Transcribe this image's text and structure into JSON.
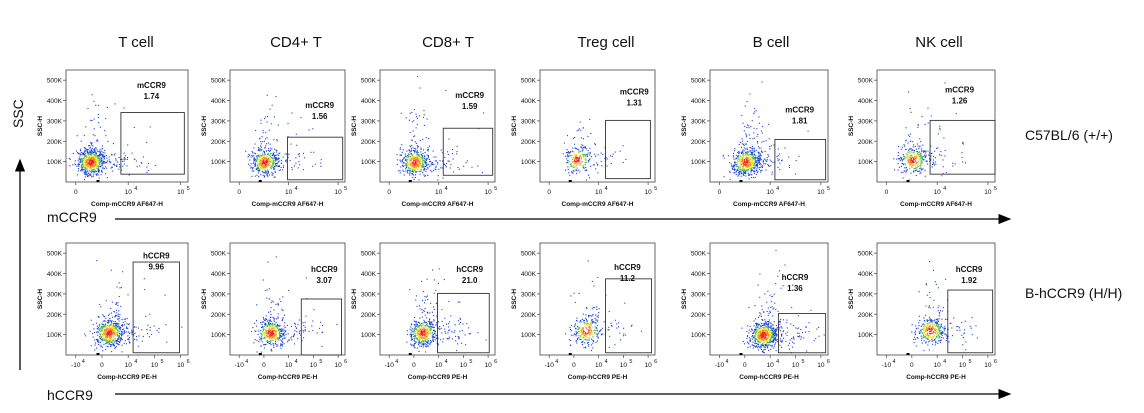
{
  "columns": [
    "T cell",
    "CD4+ T",
    "CD8+ T",
    "Treg cell",
    "B cell",
    "NK cell"
  ],
  "row_labels": [
    "C57BL/6 (+/+)",
    "B-hCCR9 (H/H)"
  ],
  "y_axis_name": "SSC",
  "row_axis_names": [
    "mCCR9",
    "hCCR9"
  ],
  "colors": {
    "high": "#e8231a",
    "mid": "#f4e21b",
    "low": "#1c3fd6",
    "gate": "#333333"
  },
  "chart_data": [
    {
      "type": "scatter",
      "row": "C57BL/6 (+/+)",
      "xlabel": "Comp-mCCR9 AF647-H",
      "ylabel": "SSC-H",
      "y_ticks": [
        "100K",
        "200K",
        "300K",
        "400K",
        "500K"
      ],
      "x_ticks": [
        "0",
        "10^4",
        "10^5"
      ],
      "gate_name": "mCCR9",
      "panels": [
        {
          "cell": "T cell",
          "gate_percent": "1.74"
        },
        {
          "cell": "CD4+ T",
          "gate_percent": "1.56"
        },
        {
          "cell": "CD8+ T",
          "gate_percent": "1.59"
        },
        {
          "cell": "Treg cell",
          "gate_percent": "1.31"
        },
        {
          "cell": "B cell",
          "gate_percent": "1.81"
        },
        {
          "cell": "NK cell",
          "gate_percent": "1.26"
        }
      ]
    },
    {
      "type": "scatter",
      "row": "B-hCCR9 (H/H)",
      "xlabel": "Comp-hCCR9 PE-H",
      "ylabel": "SSC-H",
      "y_ticks": [
        "100K",
        "200K",
        "300K",
        "400K",
        "500K"
      ],
      "x_ticks": [
        "-10^4",
        "0",
        "10^4",
        "10^5",
        "10^6"
      ],
      "gate_name": "hCCR9",
      "panels": [
        {
          "cell": "T cell",
          "gate_percent": "9.96"
        },
        {
          "cell": "CD4+ T",
          "gate_percent": "3.07"
        },
        {
          "cell": "CD8+ T",
          "gate_percent": "21.0"
        },
        {
          "cell": "Treg cell",
          "gate_percent": "11.2"
        },
        {
          "cell": "B cell",
          "gate_percent": "1.36"
        },
        {
          "cell": "NK cell",
          "gate_percent": "1.92"
        }
      ]
    }
  ]
}
